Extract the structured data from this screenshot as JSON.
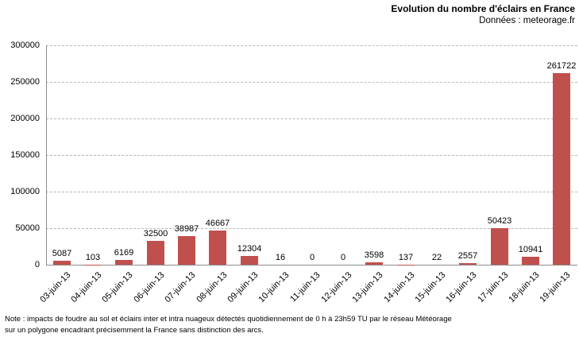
{
  "header": {
    "title": "Evolution du nombre d'éclairs en France",
    "subtitle": "Données : meteorage.fr"
  },
  "note": {
    "line1": "Note : impacts de foudre au sol et éclairs inter et intra nuageux détectés quotidiennement de 0 h à 23h59 TU par le réseau Météorage",
    "line2": "sur un polygone encadrant précisemment la France sans distinction des arcs."
  },
  "chart_data": {
    "type": "bar",
    "title": "Evolution du nombre d'éclairs en France",
    "subtitle": "Données : meteorage.fr",
    "categories": [
      "03-juin-13",
      "04-juin-13",
      "05-juin-13",
      "06-juin-13",
      "07-juin-13",
      "08-juin-13",
      "09-juin-13",
      "10-juin-13",
      "11-juin-13",
      "12-juin-13",
      "13-juin-13",
      "14-juin-13",
      "15-juin-13",
      "16-juin-13",
      "17-juin-13",
      "18-juin-13",
      "19-juin-13"
    ],
    "values": [
      5087,
      103,
      6169,
      32500,
      38987,
      46667,
      12304,
      16,
      0,
      0,
      3598,
      137,
      22,
      2557,
      50423,
      10941,
      261722
    ],
    "xlabel": "",
    "ylabel": "",
    "ylim": [
      0,
      300000
    ],
    "ytick_interval": 50000,
    "yticks": [
      0,
      50000,
      100000,
      150000,
      200000,
      250000,
      300000
    ],
    "grid": "horizontal-dashed",
    "legend": "none",
    "data_labels": true,
    "bar_color": "#c0504d",
    "axis_color": "#8c8c8c",
    "gridline_color": "#b8b8b8",
    "text_color": "#000000"
  }
}
